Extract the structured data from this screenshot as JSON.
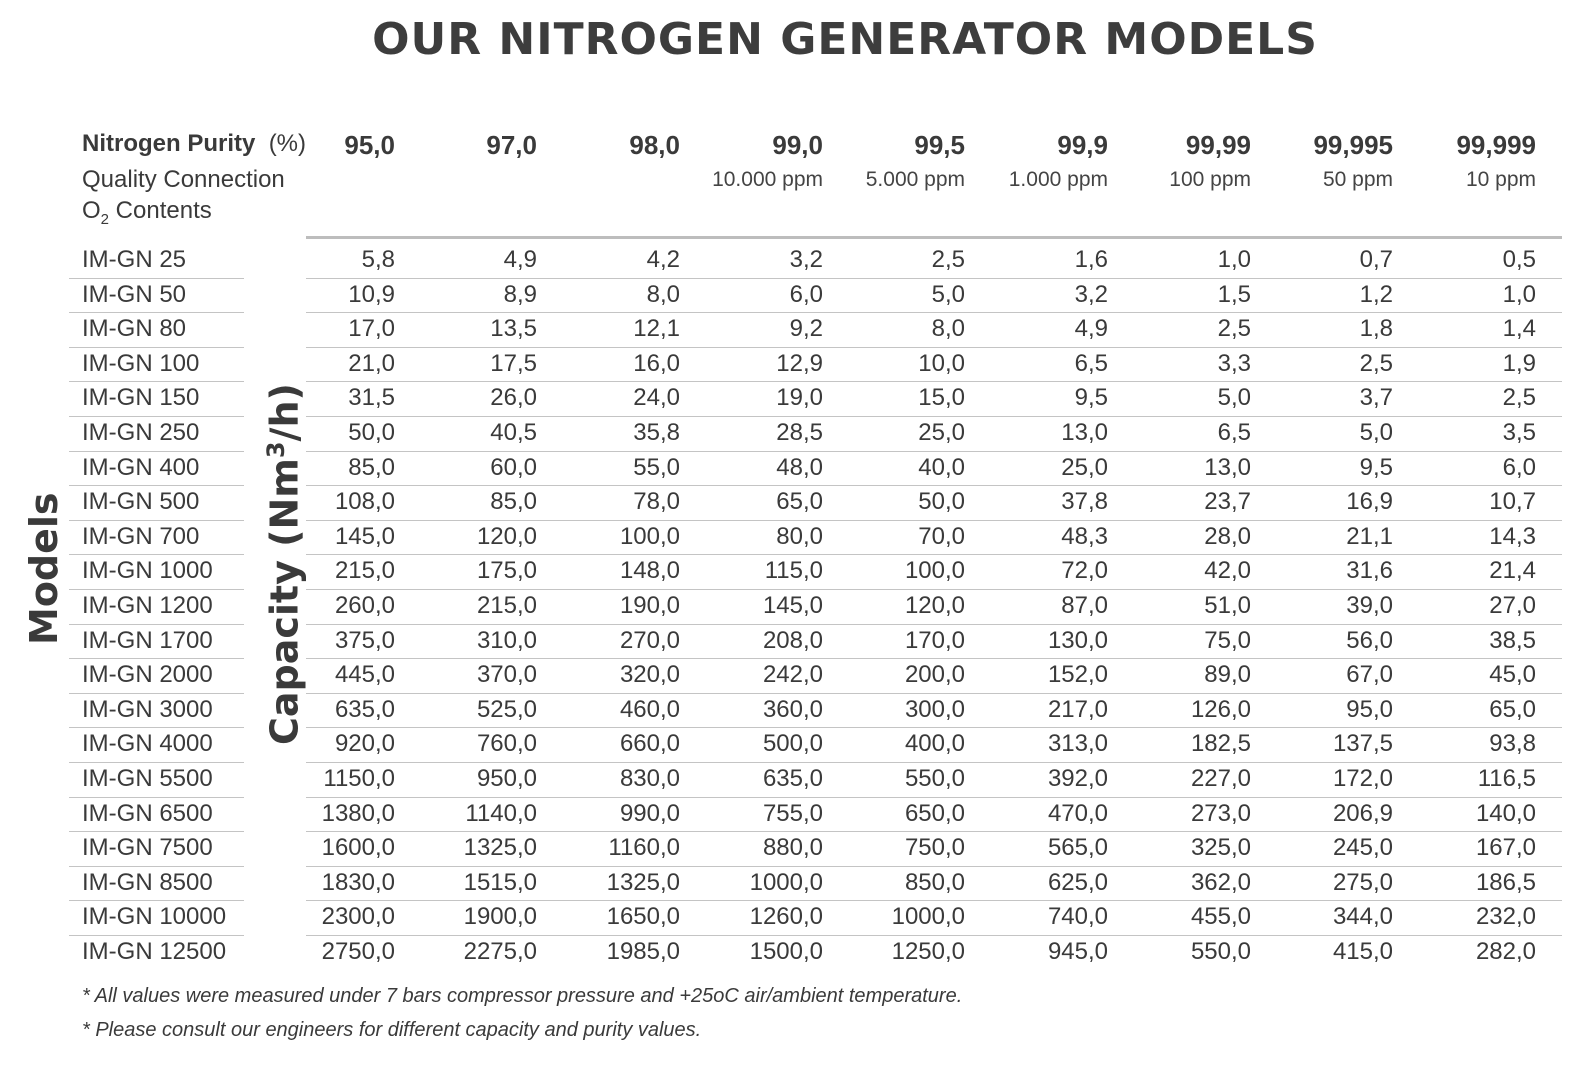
{
  "title": "OUR NITROGEN GENERATOR MODELS",
  "header": {
    "purity_label": "Nitrogen Purity",
    "purity_unit": "(%)",
    "quality_label": "Quality Connection",
    "o2_prefix": "O",
    "o2_sub": "2",
    "o2_suffix": " Contents"
  },
  "side_labels": {
    "models": "Models",
    "capacity_prefix": "Capacity (Nm",
    "capacity_sup": "3",
    "capacity_suffix": "/h)"
  },
  "columns": [
    {
      "purity": "95,0",
      "ppm": ""
    },
    {
      "purity": "97,0",
      "ppm": ""
    },
    {
      "purity": "98,0",
      "ppm": ""
    },
    {
      "purity": "99,0",
      "ppm": "10.000 ppm"
    },
    {
      "purity": "99,5",
      "ppm": "5.000 ppm"
    },
    {
      "purity": "99,9",
      "ppm": "1.000 ppm"
    },
    {
      "purity": "99,99",
      "ppm": "100 ppm"
    },
    {
      "purity": "99,995",
      "ppm": "50 ppm"
    },
    {
      "purity": "99,999",
      "ppm": "10 ppm"
    }
  ],
  "rows": [
    {
      "model": "IM-GN 25",
      "values": [
        "5,8",
        "4,9",
        "4,2",
        "3,2",
        "2,5",
        "1,6",
        "1,0",
        "0,7",
        "0,5"
      ]
    },
    {
      "model": "IM-GN 50",
      "values": [
        "10,9",
        "8,9",
        "8,0",
        "6,0",
        "5,0",
        "3,2",
        "1,5",
        "1,2",
        "1,0"
      ]
    },
    {
      "model": "IM-GN 80",
      "values": [
        "17,0",
        "13,5",
        "12,1",
        "9,2",
        "8,0",
        "4,9",
        "2,5",
        "1,8",
        "1,4"
      ]
    },
    {
      "model": "IM-GN 100",
      "values": [
        "21,0",
        "17,5",
        "16,0",
        "12,9",
        "10,0",
        "6,5",
        "3,3",
        "2,5",
        "1,9"
      ]
    },
    {
      "model": "IM-GN 150",
      "values": [
        "31,5",
        "26,0",
        "24,0",
        "19,0",
        "15,0",
        "9,5",
        "5,0",
        "3,7",
        "2,5"
      ]
    },
    {
      "model": "IM-GN 250",
      "values": [
        "50,0",
        "40,5",
        "35,8",
        "28,5",
        "25,0",
        "13,0",
        "6,5",
        "5,0",
        "3,5"
      ]
    },
    {
      "model": "IM-GN 400",
      "values": [
        "85,0",
        "60,0",
        "55,0",
        "48,0",
        "40,0",
        "25,0",
        "13,0",
        "9,5",
        "6,0"
      ]
    },
    {
      "model": "IM-GN 500",
      "values": [
        "108,0",
        "85,0",
        "78,0",
        "65,0",
        "50,0",
        "37,8",
        "23,7",
        "16,9",
        "10,7"
      ]
    },
    {
      "model": "IM-GN 700",
      "values": [
        "145,0",
        "120,0",
        "100,0",
        "80,0",
        "70,0",
        "48,3",
        "28,0",
        "21,1",
        "14,3"
      ]
    },
    {
      "model": "IM-GN 1000",
      "values": [
        "215,0",
        "175,0",
        "148,0",
        "115,0",
        "100,0",
        "72,0",
        "42,0",
        "31,6",
        "21,4"
      ]
    },
    {
      "model": "IM-GN 1200",
      "values": [
        "260,0",
        "215,0",
        "190,0",
        "145,0",
        "120,0",
        "87,0",
        "51,0",
        "39,0",
        "27,0"
      ]
    },
    {
      "model": "IM-GN 1700",
      "values": [
        "375,0",
        "310,0",
        "270,0",
        "208,0",
        "170,0",
        "130,0",
        "75,0",
        "56,0",
        "38,5"
      ]
    },
    {
      "model": "IM-GN 2000",
      "values": [
        "445,0",
        "370,0",
        "320,0",
        "242,0",
        "200,0",
        "152,0",
        "89,0",
        "67,0",
        "45,0"
      ]
    },
    {
      "model": "IM-GN 3000",
      "values": [
        "635,0",
        "525,0",
        "460,0",
        "360,0",
        "300,0",
        "217,0",
        "126,0",
        "95,0",
        "65,0"
      ]
    },
    {
      "model": "IM-GN 4000",
      "values": [
        "920,0",
        "760,0",
        "660,0",
        "500,0",
        "400,0",
        "313,0",
        "182,5",
        "137,5",
        "93,8"
      ]
    },
    {
      "model": "IM-GN 5500",
      "values": [
        "1150,0",
        "950,0",
        "830,0",
        "635,0",
        "550,0",
        "392,0",
        "227,0",
        "172,0",
        "116,5"
      ]
    },
    {
      "model": "IM-GN 6500",
      "values": [
        "1380,0",
        "1140,0",
        "990,0",
        "755,0",
        "650,0",
        "470,0",
        "273,0",
        "206,9",
        "140,0"
      ]
    },
    {
      "model": "IM-GN 7500",
      "values": [
        "1600,0",
        "1325,0",
        "1160,0",
        "880,0",
        "750,0",
        "565,0",
        "325,0",
        "245,0",
        "167,0"
      ]
    },
    {
      "model": "IM-GN 8500",
      "values": [
        "1830,0",
        "1515,0",
        "1325,0",
        "1000,0",
        "850,0",
        "625,0",
        "362,0",
        "275,0",
        "186,5"
      ]
    },
    {
      "model": "IM-GN 10000",
      "values": [
        "2300,0",
        "1900,0",
        "1650,0",
        "1260,0",
        "1000,0",
        "740,0",
        "455,0",
        "344,0",
        "232,0"
      ]
    },
    {
      "model": "IM-GN 12500",
      "values": [
        "2750,0",
        "2275,0",
        "1985,0",
        "1500,0",
        "1250,0",
        "945,0",
        "550,0",
        "415,0",
        "282,0"
      ]
    }
  ],
  "notes": [
    "* All values were measured under 7 bars compressor pressure and +25oC air/ambient temperature.",
    "* Please consult our engineers for different capacity and purity values."
  ]
}
